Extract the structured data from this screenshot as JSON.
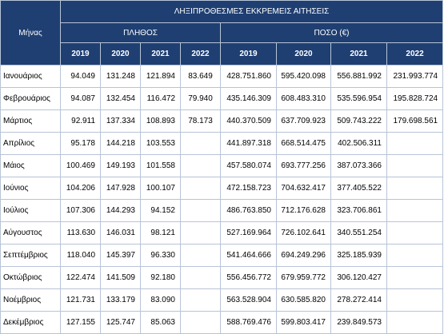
{
  "header": {
    "months_label": "Μήνας",
    "group_title": "ΛΗΞΙΠΡΟΘΕΣΜΕΣ ΕΚΚΡΕΜΕΙΣ ΑΙΤΗΣΕΙΣ",
    "count_label": "ΠΛΗΘΟΣ",
    "amount_label": "ΠΟΣΟ (€)",
    "years": [
      "2019",
      "2020",
      "2021",
      "2022"
    ]
  },
  "rows": [
    {
      "month": "Ιανουάριος",
      "count": [
        "94.049",
        "131.248",
        "121.894",
        "83.649"
      ],
      "amount": [
        "428.751.860",
        "595.420.098",
        "556.881.992",
        "231.993.774"
      ]
    },
    {
      "month": "Φεβρουάριος",
      "count": [
        "94.087",
        "132.454",
        "116.472",
        "79.940"
      ],
      "amount": [
        "435.146.309",
        "608.483.310",
        "535.596.954",
        "195.828.724"
      ]
    },
    {
      "month": "Μάρτιος",
      "count": [
        "92.911",
        "137.334",
        "108.893",
        "78.173"
      ],
      "amount": [
        "440.370.509",
        "637.709.923",
        "509.743.222",
        "179.698.561"
      ]
    },
    {
      "month": "Απρίλιος",
      "count": [
        "95.178",
        "144.218",
        "103.553",
        ""
      ],
      "amount": [
        "441.897.318",
        "668.514.475",
        "402.506.311",
        ""
      ]
    },
    {
      "month": "Μάιος",
      "count": [
        "100.469",
        "149.193",
        "101.558",
        ""
      ],
      "amount": [
        "457.580.074",
        "693.777.256",
        "387.073.366",
        ""
      ]
    },
    {
      "month": "Ιούνιος",
      "count": [
        "104.206",
        "147.928",
        "100.107",
        ""
      ],
      "amount": [
        "472.158.723",
        "704.632.417",
        "377.405.522",
        ""
      ]
    },
    {
      "month": "Ιούλιος",
      "count": [
        "107.306",
        "144.293",
        "94.152",
        ""
      ],
      "amount": [
        "486.763.850",
        "712.176.628",
        "323.706.861",
        ""
      ]
    },
    {
      "month": "Αύγουστος",
      "count": [
        "113.630",
        "146.031",
        "98.121",
        ""
      ],
      "amount": [
        "527.169.964",
        "726.102.641",
        "340.551.254",
        ""
      ]
    },
    {
      "month": "Σεπτέμβριος",
      "count": [
        "118.040",
        "145.397",
        "96.330",
        ""
      ],
      "amount": [
        "541.464.666",
        "694.249.296",
        "325.185.939",
        ""
      ]
    },
    {
      "month": "Οκτώβριος",
      "count": [
        "122.474",
        "141.509",
        "92.180",
        ""
      ],
      "amount": [
        "556.456.772",
        "679.959.772",
        "306.120.427",
        ""
      ]
    },
    {
      "month": "Νοέμβριος",
      "count": [
        "121.731",
        "133.179",
        "83.090",
        ""
      ],
      "amount": [
        "563.528.904",
        "630.585.820",
        "278.272.414",
        ""
      ]
    },
    {
      "month": "Δεκέμβριος",
      "count": [
        "127.155",
        "125.747",
        "85.063",
        ""
      ],
      "amount": [
        "588.769.476",
        "599.803.417",
        "239.849.573",
        ""
      ]
    }
  ]
}
